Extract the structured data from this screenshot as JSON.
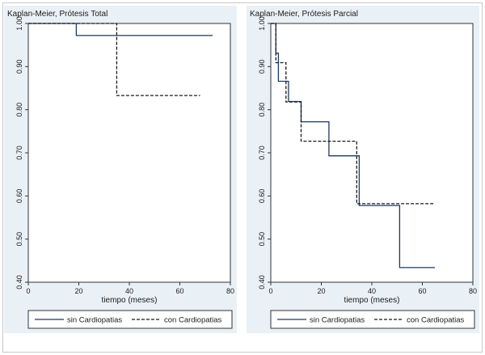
{
  "chart_data": [
    {
      "type": "line",
      "title": "Kaplan-Meier, Prótesis Total",
      "xlabel": "tiempo (meses)",
      "ylabel": "",
      "xlim": [
        0,
        80
      ],
      "ylim": [
        0.4,
        1.0
      ],
      "x_ticks": [
        "0",
        "20",
        "40",
        "60",
        "80"
      ],
      "y_ticks": [
        "0.40",
        "0.50",
        "0.60",
        "0.70",
        "0.80",
        "0.90",
        "1.00"
      ],
      "grid": false,
      "legend": "bottom",
      "series": [
        {
          "name": "sin Cardiopatias",
          "style": "solid",
          "color": "#1f3a5f",
          "points": [
            [
              0,
              1.0
            ],
            [
              19,
              1.0
            ],
            [
              19,
              0.972
            ],
            [
              73,
              0.972
            ]
          ]
        },
        {
          "name": "con Cardiopatias",
          "style": "dashed",
          "color": "#1a1a1a",
          "points": [
            [
              0,
              1.0
            ],
            [
              35,
              1.0
            ],
            [
              35,
              0.833
            ],
            [
              68,
              0.833
            ]
          ]
        }
      ]
    },
    {
      "type": "line",
      "title": "Kaplan-Meier, Prótesis Parcial",
      "xlabel": "tiempo (meses)",
      "ylabel": "",
      "xlim": [
        0,
        80
      ],
      "ylim": [
        0.4,
        1.0
      ],
      "x_ticks": [
        "0",
        "20",
        "40",
        "60",
        "80"
      ],
      "y_ticks": [
        "0.40",
        "0.50",
        "0.60",
        "0.70",
        "0.80",
        "0.90",
        "1.00"
      ],
      "grid": false,
      "legend": "bottom",
      "series": [
        {
          "name": "sin Cardiopatias",
          "style": "solid",
          "color": "#1f3a5f",
          "points": [
            [
              0,
              1.0
            ],
            [
              2,
              1.0
            ],
            [
              2,
              0.931
            ],
            [
              3,
              0.931
            ],
            [
              3,
              0.866
            ],
            [
              7,
              0.866
            ],
            [
              7,
              0.819
            ],
            [
              12,
              0.819
            ],
            [
              12,
              0.772
            ],
            [
              23,
              0.772
            ],
            [
              23,
              0.693
            ],
            [
              35,
              0.693
            ],
            [
              35,
              0.578
            ],
            [
              51,
              0.578
            ],
            [
              51,
              0.434
            ],
            [
              65,
              0.434
            ]
          ]
        },
        {
          "name": "con Cardiopatias",
          "style": "dashed",
          "color": "#1a1a1a",
          "points": [
            [
              0,
              1.0
            ],
            [
              2,
              1.0
            ],
            [
              2,
              0.909
            ],
            [
              6,
              0.909
            ],
            [
              6,
              0.818
            ],
            [
              12,
              0.818
            ],
            [
              12,
              0.727
            ],
            [
              34,
              0.727
            ],
            [
              34,
              0.582
            ],
            [
              65,
              0.582
            ]
          ]
        }
      ]
    }
  ]
}
